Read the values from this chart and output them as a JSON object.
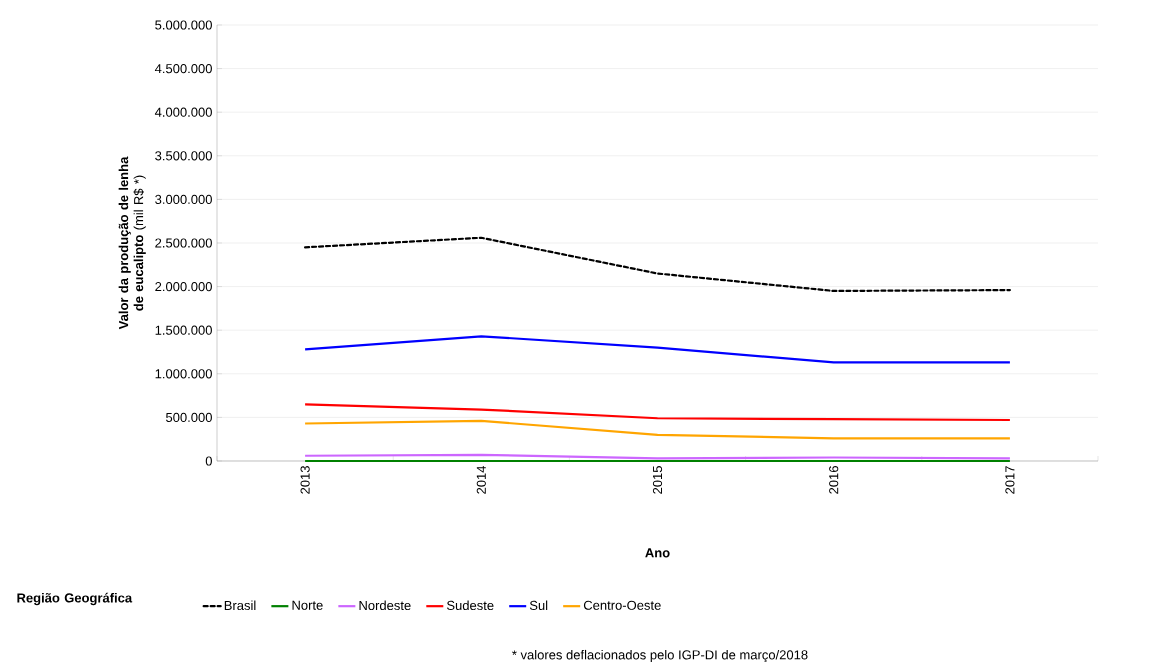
{
  "chart_data": {
    "type": "line",
    "xlabel": "Ano",
    "ylabel": "**Valor da produção de lenha de eucalipto** (mil R$ *)",
    "legend_title": "Região Geográfica",
    "categories": [
      "2013",
      "2014",
      "2015",
      "2016",
      "2017"
    ],
    "series": [
      {
        "name": "Brasil",
        "color": "#000000",
        "line_style": "dashed",
        "values": [
          2450000,
          2560000,
          2150000,
          1950000,
          1960000
        ]
      },
      {
        "name": "Norte",
        "color": "#008000",
        "values": [
          0,
          0,
          0,
          0,
          0
        ]
      },
      {
        "name": "Nordeste",
        "color": "#cc66ff",
        "values": [
          60000,
          70000,
          30000,
          40000,
          30000
        ]
      },
      {
        "name": "Sudeste",
        "color": "#ff0000",
        "values": [
          650000,
          590000,
          490000,
          480000,
          470000
        ]
      },
      {
        "name": "Sul",
        "color": "#0000ff",
        "values": [
          1280000,
          1430000,
          1300000,
          1130000,
          1130000
        ]
      },
      {
        "name": "Centro-Oeste",
        "color": "#ffa500",
        "values": [
          430000,
          460000,
          300000,
          260000,
          260000
        ]
      }
    ],
    "ylim": [
      0,
      5000000
    ],
    "yticks": [
      0,
      {
        "value": 500000,
        "label": "500.000"
      },
      {
        "value": 1000000,
        "label": "1.000.000"
      },
      {
        "value": 1500000,
        "label": "1.500.000"
      },
      {
        "value": 2000000,
        "label": "2.000.000"
      },
      {
        "value": 2500000,
        "label": "2.500.000"
      },
      {
        "value": 3000000,
        "label": "3.000.000"
      },
      {
        "value": 3500000,
        "label": "3.500.000"
      },
      {
        "value": 4000000,
        "label": "4.000.000"
      },
      {
        "value": 4500000,
        "label": "4.500.000"
      },
      {
        "value": 5000000,
        "label": "5.000.000"
      }
    ],
    "grid": "y",
    "legend": "bottom",
    "marker": "none",
    "line_style": "solid",
    "annotations": [
      "* valores deflacionados pelo IGP-DI de março/2018"
    ]
  }
}
